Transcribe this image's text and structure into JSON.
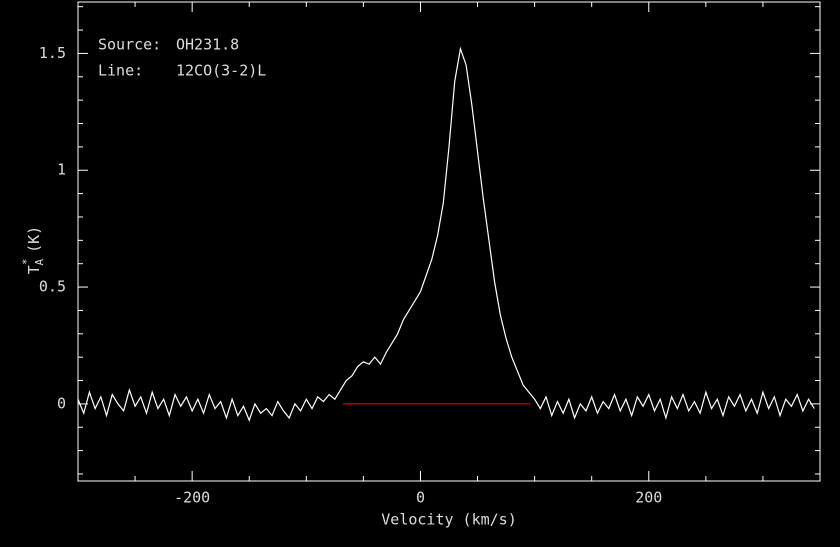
{
  "chart_data": {
    "type": "line",
    "xlabel": "Velocity (km/s)",
    "ylabel": {
      "main": "T",
      "sup": "*",
      "sub": "A",
      "unit": "(K)"
    },
    "annotations": [
      {
        "key": "Source:",
        "text": "OH231.8"
      },
      {
        "key": "Line:",
        "text": "12CO(3-2)L"
      }
    ],
    "background": "#000000",
    "axis_color": "#ffffff",
    "xlim": [
      -300,
      350
    ],
    "ylim": [
      -0.33,
      1.72
    ],
    "xticks": [
      -200,
      0,
      200
    ],
    "yticks": [
      0,
      0.5,
      1,
      1.5
    ],
    "xminorticks": [
      -250,
      -150,
      -100,
      -50,
      50,
      100,
      150,
      250,
      300
    ],
    "yminorticks": [
      -0.3,
      -0.2,
      -0.1,
      0.1,
      0.2,
      0.3,
      0.4,
      0.6,
      0.7,
      0.8,
      0.9,
      1.1,
      1.2,
      1.3,
      1.4,
      1.6,
      1.7
    ],
    "zero_line": {
      "color": "#ff0000",
      "x": [
        -68,
        96
      ],
      "y": 0
    },
    "x": [
      -300,
      -295,
      -290,
      -285,
      -280,
      -275,
      -270,
      -265,
      -260,
      -255,
      -250,
      -245,
      -240,
      -235,
      -230,
      -225,
      -220,
      -215,
      -210,
      -205,
      -200,
      -195,
      -190,
      -185,
      -180,
      -175,
      -170,
      -165,
      -160,
      -155,
      -150,
      -145,
      -140,
      -135,
      -130,
      -125,
      -120,
      -115,
      -110,
      -105,
      -100,
      -95,
      -90,
      -85,
      -80,
      -75,
      -70,
      -65,
      -60,
      -55,
      -50,
      -45,
      -40,
      -35,
      -30,
      -25,
      -20,
      -15,
      -10,
      -5,
      0,
      5,
      10,
      15,
      20,
      25,
      30,
      35,
      40,
      45,
      50,
      55,
      60,
      65,
      70,
      75,
      80,
      85,
      90,
      95,
      100,
      105,
      110,
      115,
      120,
      125,
      130,
      135,
      140,
      145,
      150,
      155,
      160,
      165,
      170,
      175,
      180,
      185,
      190,
      195,
      200,
      205,
      210,
      215,
      220,
      225,
      230,
      235,
      240,
      245,
      250,
      255,
      260,
      265,
      270,
      275,
      280,
      285,
      290,
      295,
      300,
      305,
      310,
      315,
      320,
      325,
      330,
      335,
      340,
      345
    ],
    "series": [
      {
        "color": "#ffffff",
        "values": [
          0.02,
          -0.04,
          0.05,
          -0.02,
          0.03,
          -0.05,
          0.04,
          0.0,
          -0.03,
          0.06,
          -0.01,
          0.03,
          -0.04,
          0.05,
          -0.02,
          0.02,
          -0.05,
          0.04,
          -0.01,
          0.03,
          -0.03,
          0.02,
          -0.04,
          0.04,
          -0.02,
          0.01,
          -0.06,
          0.02,
          -0.05,
          -0.01,
          -0.07,
          0.0,
          -0.04,
          -0.02,
          -0.05,
          0.01,
          -0.03,
          -0.06,
          0.0,
          -0.03,
          0.02,
          -0.02,
          0.03,
          0.01,
          0.04,
          0.02,
          0.06,
          0.1,
          0.12,
          0.16,
          0.18,
          0.17,
          0.2,
          0.17,
          0.22,
          0.26,
          0.3,
          0.36,
          0.4,
          0.44,
          0.48,
          0.55,
          0.62,
          0.72,
          0.86,
          1.1,
          1.38,
          1.52,
          1.45,
          1.28,
          1.08,
          0.88,
          0.7,
          0.52,
          0.38,
          0.28,
          0.2,
          0.14,
          0.08,
          0.05,
          0.02,
          -0.02,
          0.03,
          -0.05,
          0.01,
          -0.04,
          0.02,
          -0.06,
          0.0,
          -0.03,
          0.03,
          -0.04,
          0.01,
          -0.02,
          0.04,
          -0.03,
          0.02,
          -0.05,
          0.03,
          -0.01,
          0.04,
          -0.03,
          0.02,
          -0.06,
          0.03,
          -0.02,
          0.04,
          -0.03,
          0.01,
          -0.04,
          0.05,
          -0.02,
          0.02,
          -0.05,
          0.03,
          -0.01,
          0.04,
          -0.03,
          0.02,
          -0.04,
          0.05,
          -0.02,
          0.03,
          -0.05,
          0.02,
          -0.01,
          0.04,
          -0.03,
          0.02,
          -0.02
        ]
      }
    ]
  }
}
